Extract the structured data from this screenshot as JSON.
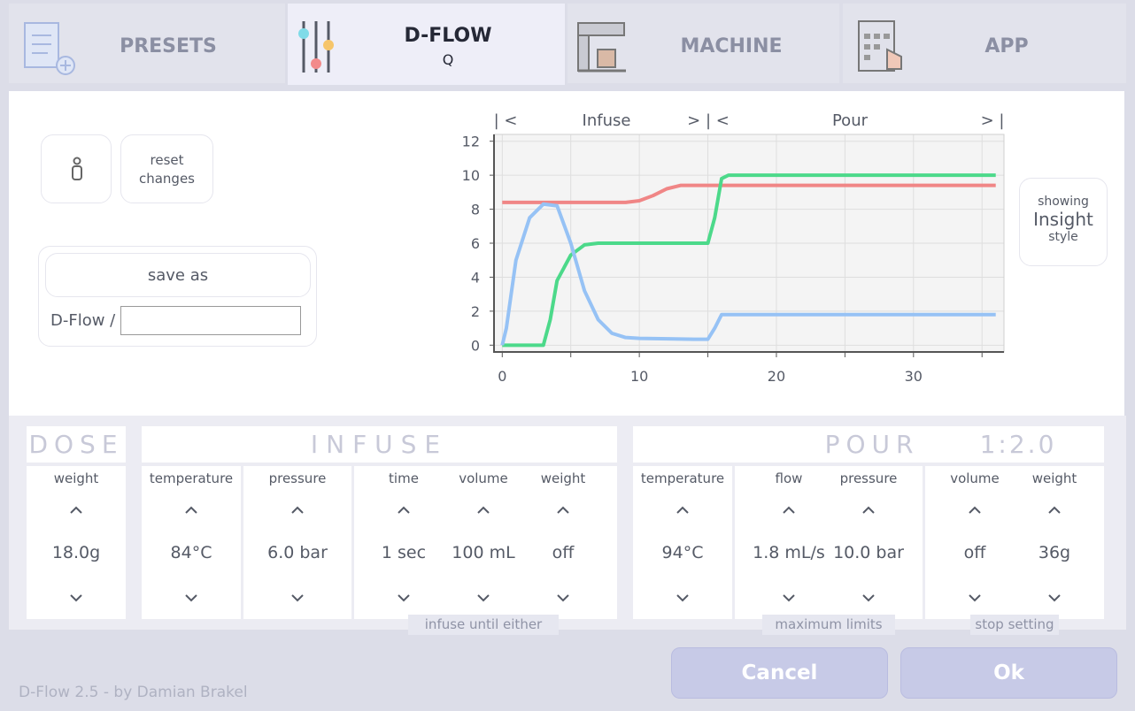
{
  "tabs": [
    {
      "label": "PRESETS"
    },
    {
      "label": "D-FLOW",
      "subtitle": "Q"
    },
    {
      "label": "MACHINE"
    },
    {
      "label": "APP"
    }
  ],
  "editor": {
    "reset_button": "reset changes",
    "save_as_button": "save as",
    "save_prefix": "D-Flow /"
  },
  "chart_data": {
    "type": "line",
    "phase_labels": [
      "| <",
      "Infuse",
      "> | <",
      "Pour",
      "> |"
    ],
    "xlim": [
      -0.6,
      36.6
    ],
    "ylim": [
      -0.4,
      12.4
    ],
    "xticks": [
      0,
      10,
      20,
      30
    ],
    "yticks": [
      0,
      2,
      4,
      6,
      8,
      10,
      12
    ],
    "xminor": [
      5,
      15,
      25,
      35
    ],
    "grid": true,
    "series": [
      {
        "color": "#f08686",
        "x": [
          0,
          9,
          10,
          11,
          12,
          13,
          36
        ],
        "values": [
          8.4,
          8.4,
          8.5,
          8.8,
          9.2,
          9.4,
          9.4
        ]
      },
      {
        "color": "#4cd98a",
        "x": [
          0,
          3,
          3.5,
          4,
          5,
          6,
          7,
          15,
          15.5,
          16,
          16.5,
          36
        ],
        "values": [
          0,
          0,
          1.5,
          3.8,
          5.3,
          5.9,
          6,
          6,
          7.5,
          9.8,
          10,
          10
        ]
      },
      {
        "color": "#96c2f5",
        "x": [
          0,
          0.3,
          1,
          2,
          3,
          4,
          5,
          6,
          7,
          8,
          9,
          10,
          14,
          15,
          15.5,
          16,
          36
        ],
        "values": [
          0,
          1,
          5,
          7.5,
          8.3,
          8.2,
          6,
          3.2,
          1.5,
          0.7,
          0.45,
          0.4,
          0.35,
          0.35,
          1,
          1.8,
          1.8
        ]
      }
    ]
  },
  "view_toggle": {
    "line1": "showing",
    "line2": "Insight",
    "line3": "style"
  },
  "steps": {
    "dose": {
      "title": "DOSE",
      "fields": [
        {
          "label": "weight",
          "value": "18.0g"
        }
      ]
    },
    "infuse": {
      "title": "INFUSE",
      "fields": [
        {
          "label": "temperature",
          "value": "84°C"
        },
        {
          "label": "pressure",
          "value": "6.0 bar"
        },
        {
          "label": "time",
          "value": "1 sec"
        },
        {
          "label": "volume",
          "value": "100 mL"
        },
        {
          "label": "weight",
          "value": "off"
        }
      ],
      "note": "infuse until either"
    },
    "pour": {
      "title": "POUR",
      "ratio": "1:2.0",
      "fields": [
        {
          "label": "temperature",
          "value": "94°C"
        },
        {
          "label": "flow",
          "value": "1.8 mL/s"
        },
        {
          "label": "pressure",
          "value": "10.0 bar"
        },
        {
          "label": "volume",
          "value": "off"
        },
        {
          "label": "weight",
          "value": "36g"
        }
      ],
      "notes": [
        "maximum limits",
        "stop setting"
      ]
    }
  },
  "footer": {
    "version": "D-Flow 2.5 - by Damian Brakel",
    "cancel": "Cancel",
    "ok": "Ok"
  }
}
